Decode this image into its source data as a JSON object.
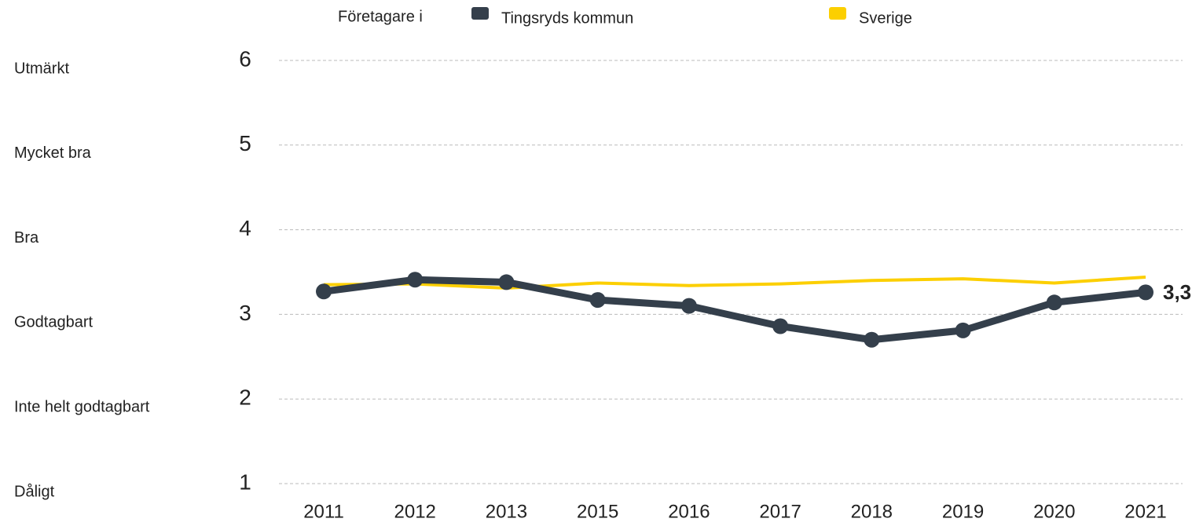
{
  "chart_data": {
    "type": "line",
    "legend_prefix": "Företagare i",
    "categories": [
      "2011",
      "2012",
      "2013",
      "2015",
      "2016",
      "2017",
      "2018",
      "2019",
      "2020",
      "2021"
    ],
    "series": [
      {
        "name": "Tingsryds kommun",
        "color": "#343f4b",
        "values": [
          3.27,
          3.41,
          3.38,
          3.17,
          3.1,
          2.86,
          2.7,
          2.81,
          3.14,
          3.26
        ],
        "value_labels": [
          null,
          null,
          null,
          null,
          null,
          null,
          null,
          null,
          null,
          "3,3"
        ]
      },
      {
        "name": "Sverige",
        "color": "#fccf00",
        "values": [
          3.35,
          3.36,
          3.31,
          3.37,
          3.34,
          3.36,
          3.4,
          3.42,
          3.37,
          3.44
        ]
      }
    ],
    "ylim": [
      1,
      6
    ],
    "yticks": [
      1,
      2,
      3,
      4,
      5,
      6
    ],
    "level_labels": [
      "Dåligt",
      "Inte helt godtagbart",
      "Godtagbart",
      "Bra",
      "Mycket bra",
      "Utmärkt"
    ],
    "grid": true
  }
}
